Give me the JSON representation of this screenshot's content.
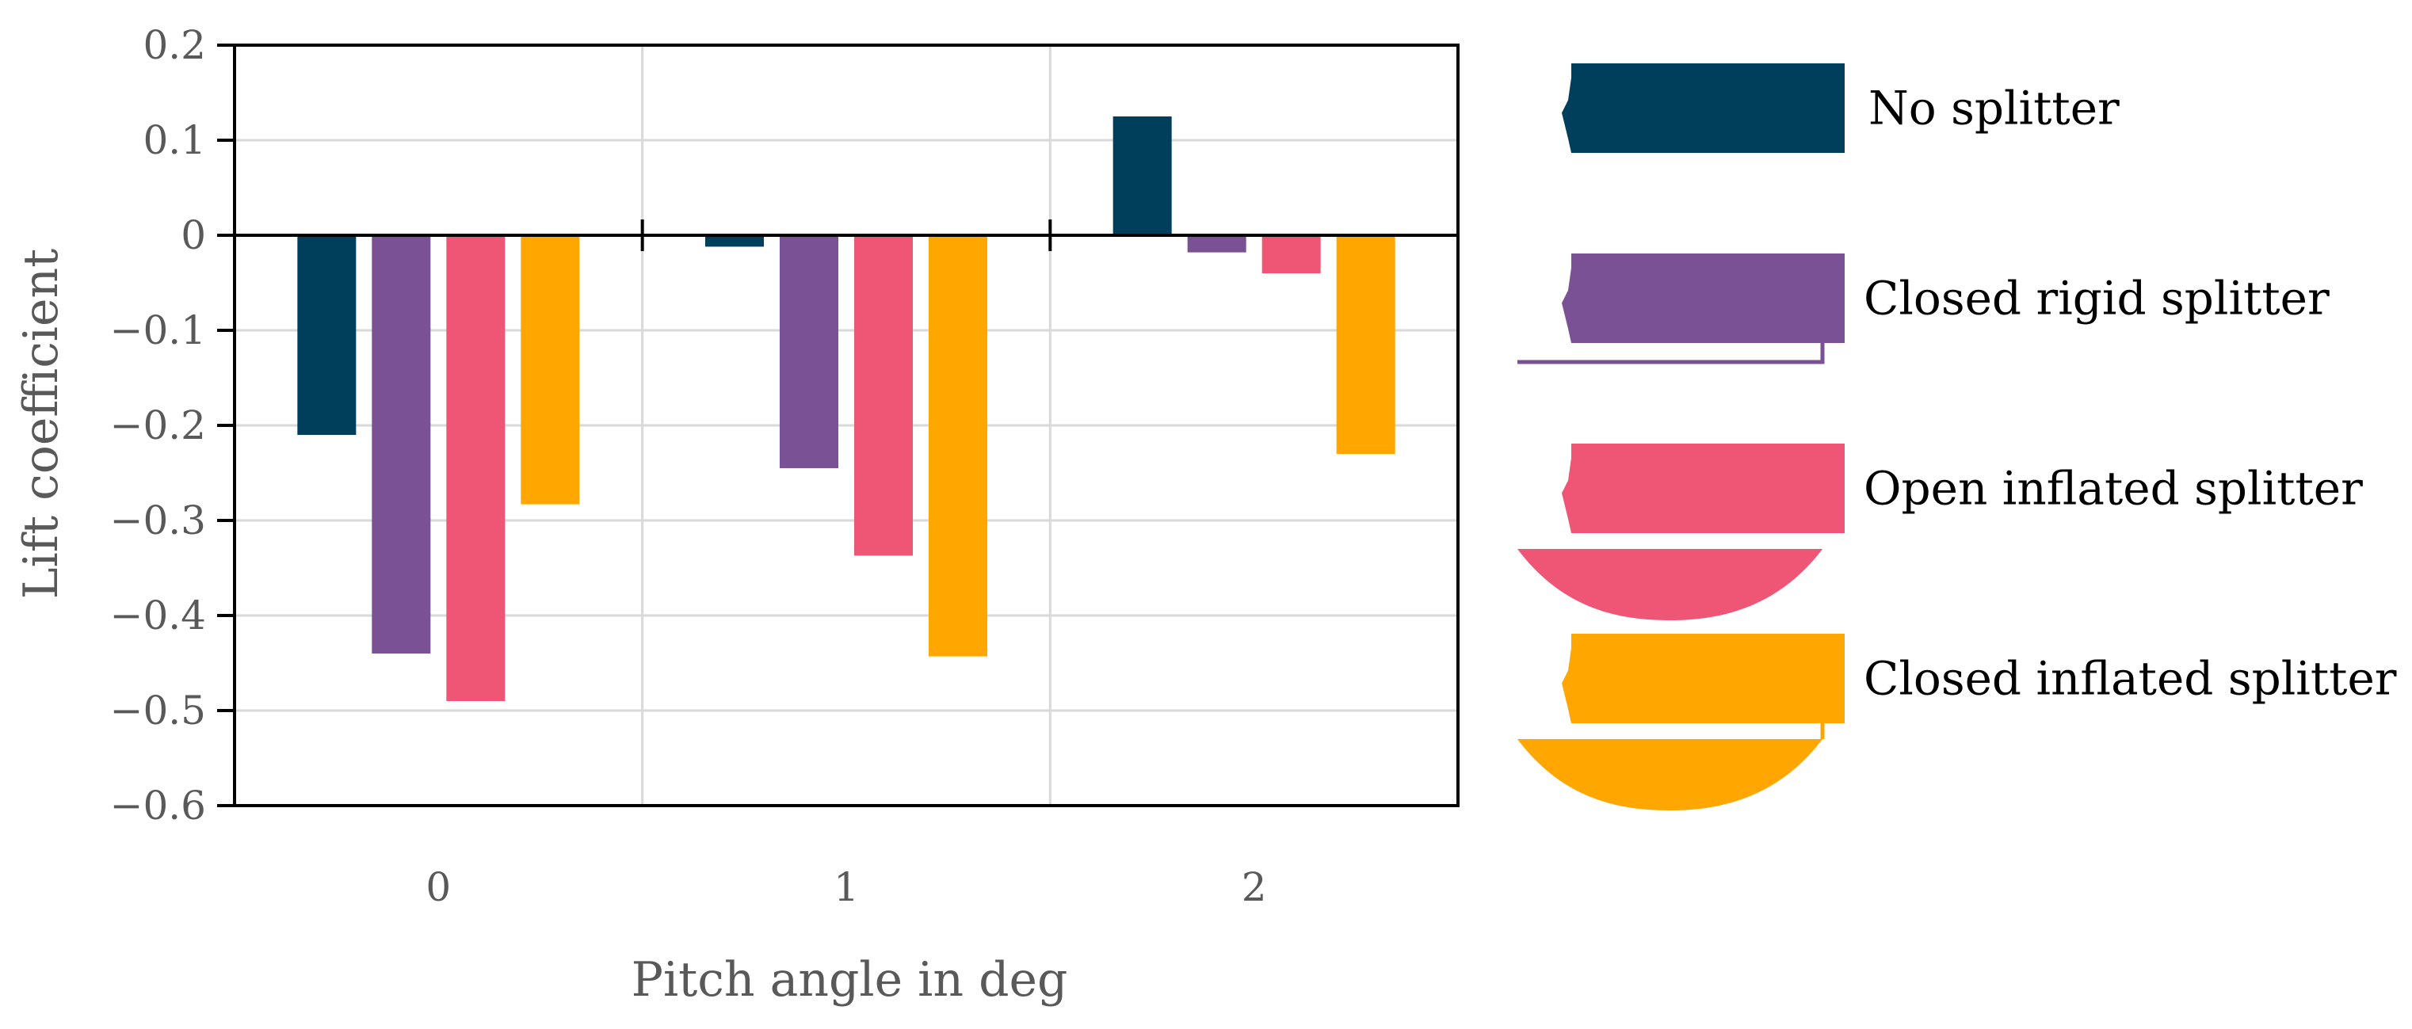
{
  "chart_data": {
    "type": "bar",
    "title": "",
    "xlabel": "Pitch angle in deg",
    "ylabel": "Lift coefficient",
    "categories": [
      "0",
      "1",
      "2"
    ],
    "ylim": [
      -0.6,
      0.2
    ],
    "yticks": [
      0.2,
      0.1,
      0,
      -0.1,
      -0.2,
      -0.3,
      -0.4,
      -0.5,
      -0.6
    ],
    "ytick_labels": [
      "0.2",
      "0.1",
      "0",
      "−0.1",
      "−0.2",
      "−0.3",
      "−0.4",
      "−0.5",
      "−0.6"
    ],
    "grid": true,
    "legend_position": "right",
    "series": [
      {
        "name": "No splitter",
        "color": "#003F5C",
        "values": [
          -0.21,
          -0.012,
          0.125
        ]
      },
      {
        "name": "Closed rigid splitter",
        "color": "#7A5195",
        "values": [
          -0.44,
          -0.245,
          -0.018
        ]
      },
      {
        "name": "Open inflated splitter",
        "color": "#EF5675",
        "values": [
          -0.49,
          -0.337,
          -0.04
        ]
      },
      {
        "name": "Closed inflated splitter",
        "color": "#FFA600",
        "values": [
          -0.283,
          -0.443,
          -0.23
        ]
      }
    ]
  }
}
